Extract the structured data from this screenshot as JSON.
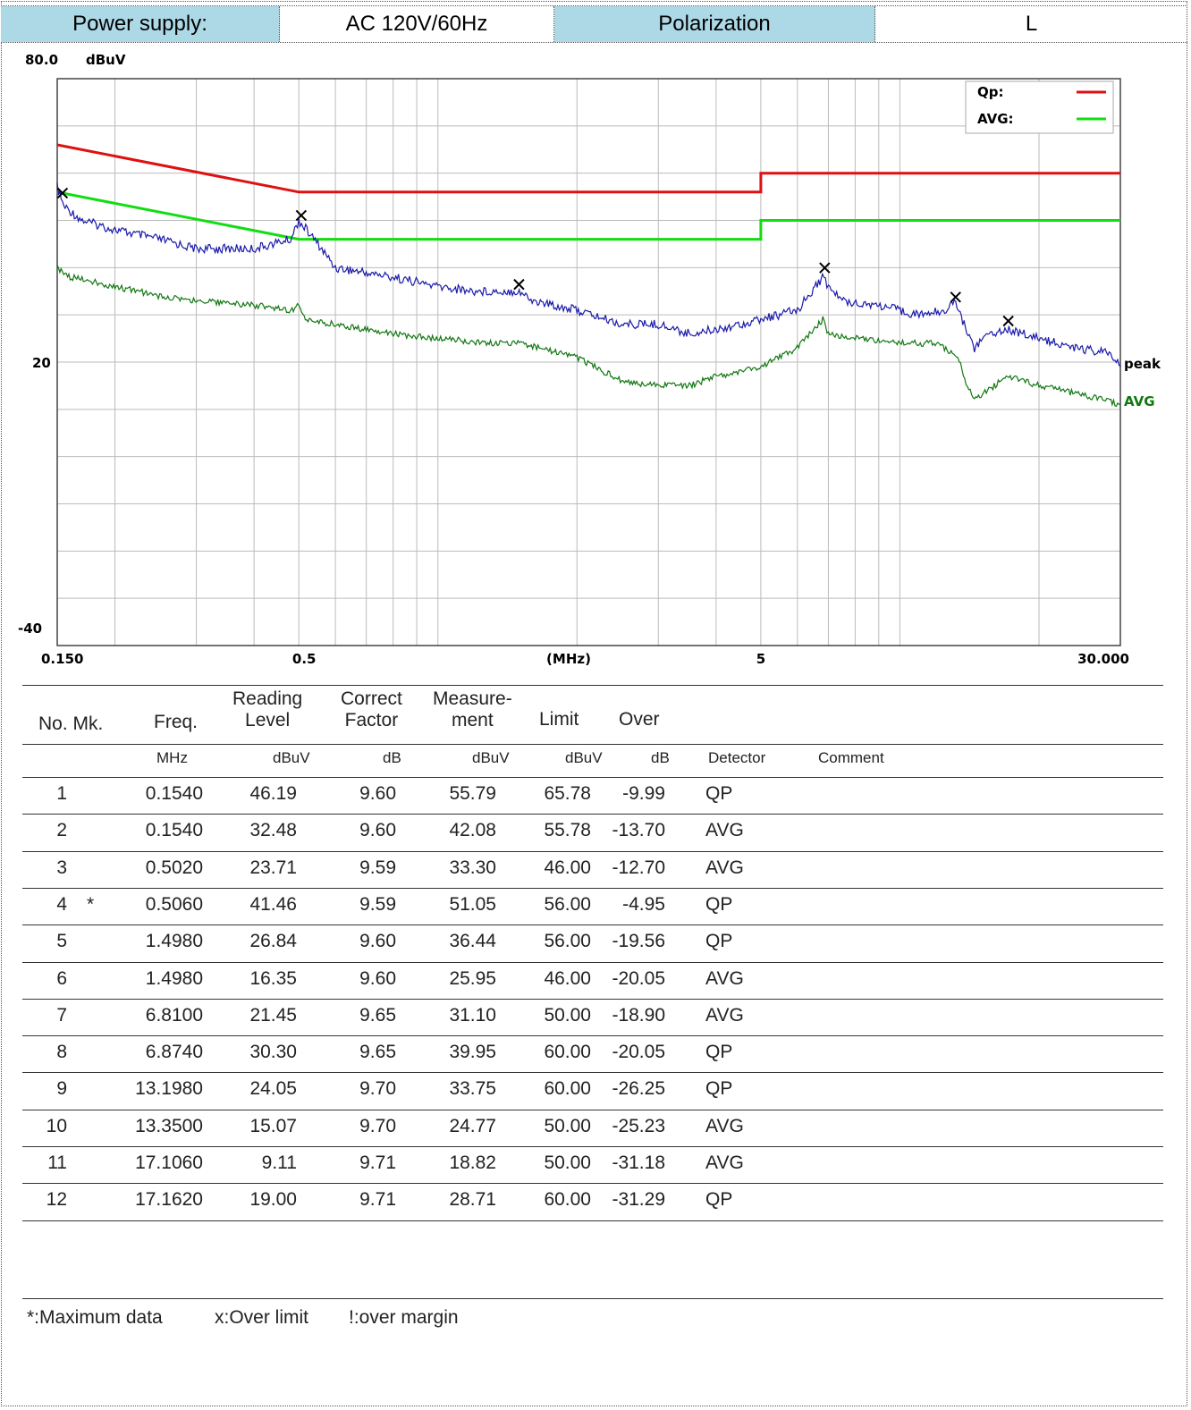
{
  "header": [
    {
      "text": "Power supply:",
      "highlight": true
    },
    {
      "text": "AC 120V/60Hz",
      "highlight": false
    },
    {
      "text": "Polarization",
      "highlight": true
    },
    {
      "text": "L",
      "highlight": false
    }
  ],
  "chart_data": {
    "type": "line",
    "ylabel": "dBuV",
    "ylim": [
      -40,
      80
    ],
    "y_tick_labels": [
      "80.0",
      "20",
      "-40"
    ],
    "xlabel": "(MHz)",
    "x_scale": "log",
    "xlim": [
      0.15,
      30
    ],
    "x_tick_labels": [
      "0.150",
      "0.5",
      "5",
      "30.000"
    ],
    "x_tick_values": [
      0.15,
      0.5,
      5,
      30
    ],
    "grid": true,
    "legend": {
      "placement": "top-right",
      "entries": [
        {
          "name": "Qp:",
          "color": "#dd1111"
        },
        {
          "name": "AVG:",
          "color": "#11dd11"
        }
      ]
    },
    "limits": [
      {
        "name": "Qp:",
        "color": "#dd1111",
        "points": [
          [
            0.15,
            66
          ],
          [
            0.5,
            56
          ],
          [
            5,
            56
          ],
          [
            5,
            60
          ],
          [
            30,
            60
          ]
        ]
      },
      {
        "name": "AVG:",
        "color": "#11dd11",
        "points": [
          [
            0.15,
            56
          ],
          [
            0.5,
            46
          ],
          [
            5,
            46
          ],
          [
            5,
            50
          ],
          [
            30,
            50
          ]
        ]
      }
    ],
    "series": [
      {
        "name": "peak",
        "color": "#1a1aaa",
        "points": [
          [
            0.15,
            57
          ],
          [
            0.155,
            53
          ],
          [
            0.17,
            50
          ],
          [
            0.2,
            48
          ],
          [
            0.25,
            46
          ],
          [
            0.3,
            44
          ],
          [
            0.4,
            44
          ],
          [
            0.48,
            46
          ],
          [
            0.5,
            50
          ],
          [
            0.55,
            45
          ],
          [
            0.6,
            40
          ],
          [
            0.8,
            38
          ],
          [
            1.0,
            36
          ],
          [
            1.2,
            35
          ],
          [
            1.5,
            35
          ],
          [
            1.6,
            33
          ],
          [
            2.0,
            31
          ],
          [
            2.5,
            28
          ],
          [
            3.0,
            28
          ],
          [
            3.5,
            26
          ],
          [
            4.0,
            27
          ],
          [
            4.5,
            28
          ],
          [
            5.0,
            29
          ],
          [
            6.0,
            31
          ],
          [
            6.8,
            38
          ],
          [
            7.0,
            36
          ],
          [
            7.5,
            33
          ],
          [
            9.0,
            32
          ],
          [
            11.0,
            30
          ],
          [
            12.5,
            31
          ],
          [
            13.2,
            33
          ],
          [
            13.5,
            30
          ],
          [
            14.5,
            23
          ],
          [
            15.5,
            26
          ],
          [
            17.1,
            27
          ],
          [
            20.0,
            25
          ],
          [
            24.0,
            23
          ],
          [
            28.0,
            22
          ],
          [
            30.0,
            19
          ]
        ]
      },
      {
        "name": "AVG",
        "color": "#117711",
        "points": [
          [
            0.15,
            40
          ],
          [
            0.16,
            38
          ],
          [
            0.18,
            37
          ],
          [
            0.2,
            36
          ],
          [
            0.25,
            34
          ],
          [
            0.3,
            33
          ],
          [
            0.4,
            32
          ],
          [
            0.48,
            31
          ],
          [
            0.5,
            32
          ],
          [
            0.52,
            29
          ],
          [
            0.6,
            28
          ],
          [
            0.8,
            26
          ],
          [
            1.0,
            25
          ],
          [
            1.3,
            24
          ],
          [
            1.5,
            24
          ],
          [
            2.0,
            21
          ],
          [
            2.5,
            16
          ],
          [
            3.0,
            15
          ],
          [
            3.5,
            15
          ],
          [
            4.0,
            17
          ],
          [
            5.0,
            19
          ],
          [
            6.0,
            23
          ],
          [
            6.81,
            29
          ],
          [
            7.0,
            26
          ],
          [
            8.0,
            25
          ],
          [
            10.0,
            24
          ],
          [
            12.0,
            24
          ],
          [
            13.35,
            21
          ],
          [
            14.0,
            15
          ],
          [
            14.5,
            12
          ],
          [
            16.0,
            15
          ],
          [
            17.1,
            17
          ],
          [
            20.0,
            15
          ],
          [
            25.0,
            13
          ],
          [
            30.0,
            11
          ]
        ]
      }
    ],
    "series_labels": [
      "peak",
      "AVG"
    ],
    "markers": [
      {
        "no": 1,
        "freq": 0.154,
        "level": 55.79
      },
      {
        "no": 4,
        "freq": 0.506,
        "level": 51.05
      },
      {
        "no": 5,
        "freq": 1.498,
        "level": 36.44
      },
      {
        "no": 8,
        "freq": 6.874,
        "level": 39.95
      },
      {
        "no": 9,
        "freq": 13.198,
        "level": 33.75
      },
      {
        "no": 12,
        "freq": 17.162,
        "level": 28.71
      }
    ]
  },
  "table": {
    "headers": [
      {
        "key": "no_mk",
        "label": "No. Mk."
      },
      {
        "key": "freq",
        "label": "Freq."
      },
      {
        "key": "reading",
        "label": "Reading\nLevel"
      },
      {
        "key": "correct",
        "label": "Correct\nFactor"
      },
      {
        "key": "measure",
        "label": "Measure-\nment"
      },
      {
        "key": "limit",
        "label": "Limit"
      },
      {
        "key": "over",
        "label": "Over"
      }
    ],
    "units": [
      "MHz",
      "dBuV",
      "dB",
      "dBuV",
      "dBuV",
      "dB",
      "Detector",
      "Comment"
    ],
    "rows": [
      {
        "no": "1",
        "mk": "",
        "freq": "0.1540",
        "reading": "46.19",
        "correct": "9.60",
        "measure": "55.79",
        "limit": "65.78",
        "over": "-9.99",
        "detector": "QP"
      },
      {
        "no": "2",
        "mk": "",
        "freq": "0.1540",
        "reading": "32.48",
        "correct": "9.60",
        "measure": "42.08",
        "limit": "55.78",
        "over": "-13.70",
        "detector": "AVG"
      },
      {
        "no": "3",
        "mk": "",
        "freq": "0.5020",
        "reading": "23.71",
        "correct": "9.59",
        "measure": "33.30",
        "limit": "46.00",
        "over": "-12.70",
        "detector": "AVG"
      },
      {
        "no": "4",
        "mk": "*",
        "freq": "0.5060",
        "reading": "41.46",
        "correct": "9.59",
        "measure": "51.05",
        "limit": "56.00",
        "over": "-4.95",
        "detector": "QP"
      },
      {
        "no": "5",
        "mk": "",
        "freq": "1.4980",
        "reading": "26.84",
        "correct": "9.60",
        "measure": "36.44",
        "limit": "56.00",
        "over": "-19.56",
        "detector": "QP"
      },
      {
        "no": "6",
        "mk": "",
        "freq": "1.4980",
        "reading": "16.35",
        "correct": "9.60",
        "measure": "25.95",
        "limit": "46.00",
        "over": "-20.05",
        "detector": "AVG"
      },
      {
        "no": "7",
        "mk": "",
        "freq": "6.8100",
        "reading": "21.45",
        "correct": "9.65",
        "measure": "31.10",
        "limit": "50.00",
        "over": "-18.90",
        "detector": "AVG"
      },
      {
        "no": "8",
        "mk": "",
        "freq": "6.8740",
        "reading": "30.30",
        "correct": "9.65",
        "measure": "39.95",
        "limit": "60.00",
        "over": "-20.05",
        "detector": "QP"
      },
      {
        "no": "9",
        "mk": "",
        "freq": "13.1980",
        "reading": "24.05",
        "correct": "9.70",
        "measure": "33.75",
        "limit": "60.00",
        "over": "-26.25",
        "detector": "QP"
      },
      {
        "no": "10",
        "mk": "",
        "freq": "13.3500",
        "reading": "15.07",
        "correct": "9.70",
        "measure": "24.77",
        "limit": "50.00",
        "over": "-25.23",
        "detector": "AVG"
      },
      {
        "no": "11",
        "mk": "",
        "freq": "17.1060",
        "reading": "9.11",
        "correct": "9.71",
        "measure": "18.82",
        "limit": "50.00",
        "over": "-31.18",
        "detector": "AVG"
      },
      {
        "no": "12",
        "mk": "",
        "freq": "17.1620",
        "reading": "19.00",
        "correct": "9.71",
        "measure": "28.71",
        "limit": "60.00",
        "over": "-31.29",
        "detector": "QP"
      }
    ]
  },
  "footer": {
    "note1": "*:Maximum data",
    "note2": "x:Over limit",
    "note3": "!:over margin"
  }
}
